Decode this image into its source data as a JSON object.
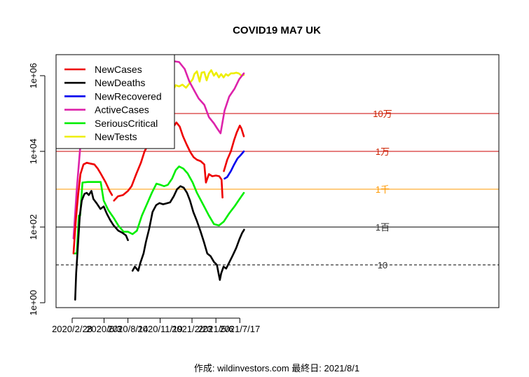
{
  "chart_data": {
    "type": "line",
    "title": "COVID19 MA7 UK",
    "y_scale": "log10",
    "ylim": [
      1,
      2000000
    ],
    "y_ticks": [
      {
        "value": 1,
        "label": "1e+00"
      },
      {
        "value": 100,
        "label": "1e+02"
      },
      {
        "value": 10000,
        "label": "1e+04"
      },
      {
        "value": 1000000,
        "label": "1e+06"
      }
    ],
    "x_ticks": [
      "2020/2/28",
      "2020/6/3",
      "2020/8/14",
      "2020/11/19",
      "2021/2/23",
      "2021/5/6",
      "2021/7/17"
    ],
    "xlim": [
      "2020-02-11",
      "2021-08-16"
    ],
    "grid": false,
    "legend_position": "top-left",
    "reference_lines": [
      {
        "value": 100000,
        "label": "10万",
        "color": "#cc0000",
        "style": "solid"
      },
      {
        "value": 10000,
        "label": "1万",
        "color": "#cc0000",
        "style": "solid"
      },
      {
        "value": 1000,
        "label": "1千",
        "color": "#ff9900",
        "style": "solid"
      },
      {
        "value": 100,
        "label": "1百",
        "color": "#000000",
        "style": "solid"
      },
      {
        "value": 10,
        "label": "10",
        "color": "#000000",
        "style": "dashed"
      }
    ],
    "series": [
      {
        "name": "NewCases",
        "color": "#ee0000",
        "points": [
          [
            "2020-03-03",
            20
          ],
          [
            "2020-03-10",
            150
          ],
          [
            "2020-03-17",
            700
          ],
          [
            "2020-03-24",
            2500
          ],
          [
            "2020-04-02",
            4500
          ],
          [
            "2020-04-12",
            5000
          ],
          [
            "2020-04-25",
            4700
          ],
          [
            "2020-05-05",
            4500
          ],
          [
            "2020-05-15",
            3500
          ],
          [
            "2020-05-25",
            2500
          ],
          [
            "2020-06-08",
            1500
          ],
          [
            "2020-06-20",
            900
          ],
          [
            "2020-06-27",
            700
          ],
          [
            null,
            null
          ],
          [
            "2020-07-03",
            500
          ],
          [
            "2020-07-15",
            650
          ],
          [
            "2020-07-30",
            700
          ],
          [
            "2020-08-14",
            900
          ],
          [
            "2020-08-25",
            1200
          ],
          [
            "2020-09-08",
            2500
          ],
          [
            "2020-09-22",
            5000
          ],
          [
            "2020-10-03",
            10000
          ],
          [
            "2020-10-12",
            14000
          ],
          [
            "2020-10-24",
            21000
          ],
          [
            "2020-11-03",
            23000
          ],
          [
            "2020-11-14",
            22000
          ],
          [
            "2020-11-24",
            15000
          ],
          [
            "2020-12-05",
            15000
          ],
          [
            "2020-12-16",
            25000
          ],
          [
            "2020-12-27",
            42000
          ],
          [
            "2021-01-07",
            58000
          ],
          [
            "2021-01-17",
            45000
          ],
          [
            "2021-01-27",
            25000
          ],
          [
            "2021-02-07",
            15000
          ],
          [
            "2021-02-18",
            9500
          ],
          [
            "2021-02-28",
            7000
          ],
          [
            "2021-03-10",
            6000
          ],
          [
            "2021-03-21",
            5500
          ],
          [
            "2021-04-01",
            4500
          ],
          [
            "2021-04-06",
            1500
          ],
          [
            "2021-04-15",
            2500
          ],
          [
            "2021-04-25",
            2200
          ],
          [
            "2021-05-06",
            2300
          ],
          [
            "2021-05-16",
            2200
          ],
          [
            "2021-05-23",
            1800
          ],
          [
            "2021-05-26",
            600
          ],
          [
            null,
            null
          ],
          [
            "2021-05-30",
            3000
          ],
          [
            "2021-06-09",
            6000
          ],
          [
            "2021-06-20",
            10000
          ],
          [
            "2021-06-30",
            20000
          ],
          [
            "2021-07-08",
            32000
          ],
          [
            "2021-07-17",
            48000
          ],
          [
            "2021-07-22",
            40000
          ],
          [
            "2021-07-29",
            25000
          ]
        ]
      },
      {
        "name": "NewDeaths",
        "color": "#000000",
        "points": [
          [
            "2020-03-08",
            1.2
          ],
          [
            "2020-03-11",
            6
          ],
          [
            "2020-03-16",
            30
          ],
          [
            "2020-03-22",
            200
          ],
          [
            "2020-03-28",
            500
          ],
          [
            "2020-04-05",
            750
          ],
          [
            "2020-04-12",
            800
          ],
          [
            "2020-04-18",
            700
          ],
          [
            "2020-04-26",
            900
          ],
          [
            "2020-05-02",
            550
          ],
          [
            "2020-05-12",
            420
          ],
          [
            "2020-05-23",
            300
          ],
          [
            "2020-06-02",
            350
          ],
          [
            "2020-06-12",
            220
          ],
          [
            "2020-06-22",
            150
          ],
          [
            "2020-07-02",
            110
          ],
          [
            "2020-07-16",
            80
          ],
          [
            "2020-07-29",
            70
          ],
          [
            "2020-08-08",
            60
          ],
          [
            "2020-08-14",
            45
          ],
          [
            null,
            null
          ],
          [
            "2020-08-28",
            7
          ],
          [
            "2020-09-04",
            9
          ],
          [
            "2020-09-14",
            7
          ],
          [
            "2020-09-20",
            11
          ],
          [
            "2020-09-30",
            20
          ],
          [
            "2020-10-07",
            40
          ],
          [
            "2020-10-17",
            90
          ],
          [
            "2020-10-27",
            250
          ],
          [
            "2020-11-07",
            380
          ],
          [
            "2020-11-17",
            430
          ],
          [
            "2020-11-28",
            400
          ],
          [
            "2020-12-08",
            420
          ],
          [
            "2020-12-19",
            450
          ],
          [
            "2020-12-30",
            650
          ],
          [
            "2021-01-09",
            1000
          ],
          [
            "2021-01-19",
            1200
          ],
          [
            "2021-01-29",
            1100
          ],
          [
            "2021-02-08",
            800
          ],
          [
            "2021-02-17",
            500
          ],
          [
            "2021-02-27",
            250
          ],
          [
            "2021-03-09",
            150
          ],
          [
            "2021-03-20",
            80
          ],
          [
            "2021-03-31",
            40
          ],
          [
            "2021-04-10",
            20
          ],
          [
            "2021-04-20",
            17
          ],
          [
            "2021-04-30",
            12
          ],
          [
            "2021-05-09",
            10
          ],
          [
            "2021-05-14",
            6
          ],
          [
            "2021-05-18",
            4
          ],
          [
            "2021-05-22",
            6
          ],
          [
            "2021-05-29",
            9
          ],
          [
            "2021-06-06",
            8
          ],
          [
            "2021-06-16",
            12
          ],
          [
            "2021-06-26",
            18
          ],
          [
            "2021-07-06",
            28
          ],
          [
            "2021-07-16",
            48
          ],
          [
            "2021-07-24",
            70
          ],
          [
            "2021-07-30",
            85
          ]
        ]
      },
      {
        "name": "NewRecovered",
        "color": "#0000ee",
        "points": [
          [
            "2021-06-01",
            1900
          ],
          [
            "2021-06-09",
            2100
          ],
          [
            "2021-06-20",
            3000
          ],
          [
            "2021-06-30",
            4500
          ],
          [
            "2021-07-10",
            6500
          ],
          [
            "2021-07-20",
            8000
          ],
          [
            "2021-07-29",
            10000
          ]
        ]
      },
      {
        "name": "ActiveCases",
        "color": "#dd22aa",
        "points": [
          [
            "2020-03-03",
            50
          ],
          [
            "2020-03-13",
            1000
          ],
          [
            "2020-03-24",
            15000
          ],
          [
            "2020-04-05",
            60000
          ],
          [
            "2020-04-18",
            110000
          ],
          [
            "2020-04-30",
            180000
          ],
          [
            "2020-05-15",
            200000
          ],
          [
            "2020-07-15",
            200000
          ],
          [
            "2020-12-14",
            200000
          ],
          [
            "2020-12-20",
            2000000
          ],
          [
            "2021-01-01",
            2400000
          ],
          [
            "2021-01-15",
            2300000
          ],
          [
            "2021-02-01",
            1500000
          ],
          [
            "2021-02-15",
            700000
          ],
          [
            "2021-03-02",
            400000
          ],
          [
            "2021-03-15",
            250000
          ],
          [
            "2021-04-01",
            170000
          ],
          [
            "2021-04-15",
            80000
          ],
          [
            "2021-04-30",
            55000
          ],
          [
            "2021-05-10",
            40000
          ],
          [
            "2021-05-20",
            30000
          ],
          [
            "2021-06-01",
            120000
          ],
          [
            "2021-06-15",
            280000
          ],
          [
            "2021-07-01",
            450000
          ],
          [
            "2021-07-15",
            800000
          ],
          [
            "2021-07-29",
            1150000
          ]
        ]
      },
      {
        "name": "SeriousCritical",
        "color": "#00ee00",
        "points": [
          [
            "2020-03-05",
            20
          ],
          [
            "2020-03-13",
            20
          ],
          [
            "2020-03-19",
            200
          ],
          [
            "2020-03-23",
            200
          ],
          [
            "2020-03-30",
            1500
          ],
          [
            "2020-04-15",
            1550
          ],
          [
            "2020-05-10",
            1550
          ],
          [
            "2020-05-24",
            1550
          ],
          [
            "2020-06-02",
            500
          ],
          [
            "2020-06-16",
            280
          ],
          [
            "2020-07-01",
            180
          ],
          [
            "2020-07-16",
            110
          ],
          [
            "2020-08-01",
            75
          ],
          [
            "2020-08-14",
            75
          ],
          [
            "2020-08-28",
            65
          ],
          [
            "2020-09-10",
            80
          ],
          [
            "2020-09-25",
            200
          ],
          [
            "2020-10-10",
            400
          ],
          [
            "2020-10-25",
            800
          ],
          [
            "2020-11-08",
            1400
          ],
          [
            "2020-11-20",
            1300
          ],
          [
            "2020-12-01",
            1200
          ],
          [
            "2020-12-12",
            1300
          ],
          [
            "2020-12-25",
            1900
          ],
          [
            "2021-01-05",
            3200
          ],
          [
            "2021-01-15",
            4000
          ],
          [
            "2021-01-28",
            3500
          ],
          [
            "2021-02-10",
            2600
          ],
          [
            "2021-02-25",
            1500
          ],
          [
            "2021-03-10",
            800
          ],
          [
            "2021-03-28",
            400
          ],
          [
            "2021-04-15",
            200
          ],
          [
            "2021-04-30",
            120
          ],
          [
            "2021-05-15",
            110
          ],
          [
            "2021-05-30",
            140
          ],
          [
            "2021-06-15",
            230
          ],
          [
            "2021-07-01",
            350
          ],
          [
            "2021-07-15",
            530
          ],
          [
            "2021-07-29",
            800
          ]
        ]
      },
      {
        "name": "NewTests",
        "color": "#eeee00",
        "points": [
          [
            "2020-04-17",
            18000
          ],
          [
            "2020-04-24",
            25000
          ],
          [
            "2020-05-01",
            50000
          ],
          [
            "2020-05-10",
            120000
          ],
          [
            "2020-05-16",
            165000
          ],
          [
            "2020-05-23",
            180000
          ],
          [
            "2020-06-01",
            200000
          ],
          [
            "2020-06-10",
            195000
          ],
          [
            "2020-06-20",
            170000
          ],
          [
            "2020-06-29",
            190000
          ],
          [
            "2020-07-08",
            210000
          ],
          [
            "2020-07-18",
            185000
          ],
          [
            "2020-07-24",
            180000
          ],
          [
            "2020-07-31",
            170000
          ],
          [
            "2020-08-05",
            165000
          ],
          [
            "2020-08-13",
            175000
          ],
          [
            "2020-08-19",
            180000
          ],
          [
            "2020-08-25",
            100000
          ],
          [
            "2020-08-28",
            25000
          ],
          [
            "2020-09-02",
            140000
          ],
          [
            "2020-09-08",
            170000
          ],
          [
            "2020-09-15",
            200000
          ],
          [
            "2020-09-23",
            250000
          ],
          [
            "2020-09-30",
            230000
          ],
          [
            "2020-10-07",
            280000
          ],
          [
            "2020-10-14",
            250000
          ],
          [
            "2020-10-20",
            330000
          ],
          [
            "2020-10-27",
            280000
          ],
          [
            "2020-11-05",
            300000
          ],
          [
            "2020-11-15",
            270000
          ],
          [
            "2020-11-25",
            310000
          ],
          [
            "2020-12-05",
            300000
          ],
          [
            "2020-12-15",
            350000
          ],
          [
            "2020-12-18",
            250000
          ],
          [
            "2020-12-22",
            500000
          ],
          [
            "2020-12-28",
            420000
          ],
          [
            "2021-01-05",
            560000
          ],
          [
            "2021-01-15",
            520000
          ],
          [
            "2021-01-25",
            580000
          ],
          [
            "2021-02-05",
            480000
          ],
          [
            "2021-02-15",
            620000
          ],
          [
            "2021-02-25",
            800000
          ],
          [
            "2021-03-02",
            1100000
          ],
          [
            "2021-03-10",
            1300000
          ],
          [
            "2021-03-18",
            700000
          ],
          [
            "2021-03-24",
            1200000
          ],
          [
            "2021-04-01",
            1250000
          ],
          [
            "2021-04-08",
            750000
          ],
          [
            "2021-04-15",
            1150000
          ],
          [
            "2021-04-22",
            1400000
          ],
          [
            "2021-04-30",
            1000000
          ],
          [
            "2021-05-07",
            1200000
          ],
          [
            "2021-05-15",
            900000
          ],
          [
            "2021-05-22",
            1100000
          ],
          [
            "2021-05-29",
            900000
          ],
          [
            "2021-06-05",
            1100000
          ],
          [
            "2021-06-12",
            1000000
          ],
          [
            "2021-06-20",
            1150000
          ],
          [
            "2021-06-28",
            1150000
          ],
          [
            "2021-07-06",
            1200000
          ],
          [
            "2021-07-14",
            1150000
          ],
          [
            "2021-07-22",
            1000000
          ],
          [
            "2021-07-29",
            1050000
          ]
        ]
      }
    ]
  },
  "footer": "作成: wildinvestors.com 最終日: 2021/8/1"
}
